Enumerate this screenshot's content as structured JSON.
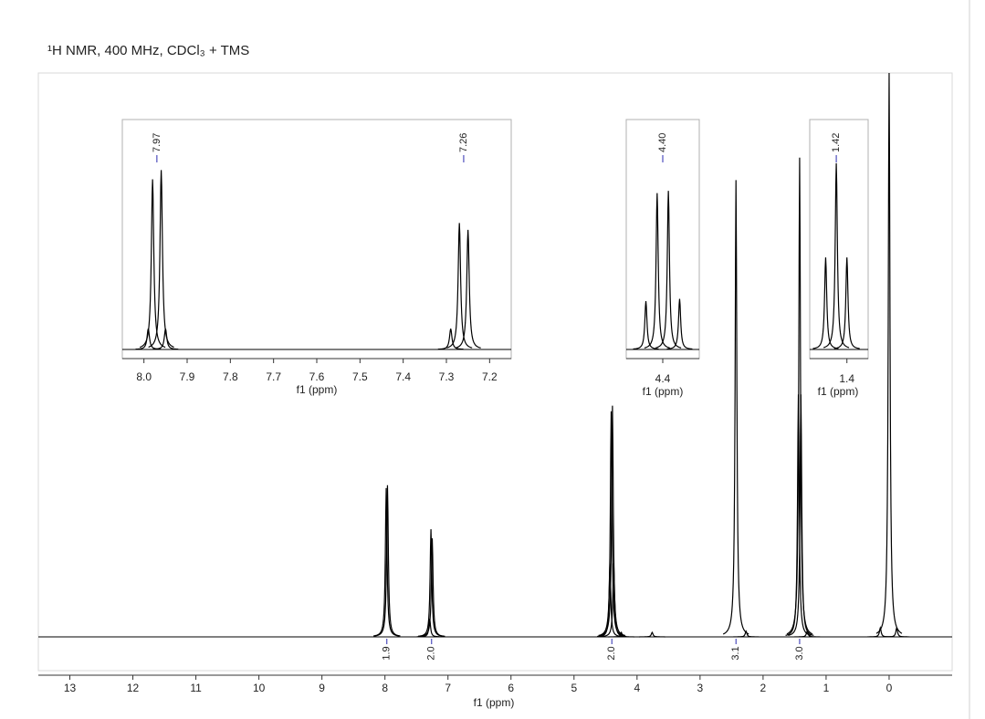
{
  "chart_data": [
    {
      "type": "spectrum",
      "title": "¹H NMR, 400 MHz, CDCl₃ + TMS",
      "xlabel": "f1 (ppm)",
      "xlim": [
        13.5,
        -1.0
      ],
      "xticks": [
        13,
        12,
        11,
        10,
        9,
        8,
        7,
        6,
        5,
        4,
        3,
        2,
        1,
        0
      ],
      "ylim": [
        0,
        100
      ],
      "color": "#000000",
      "x": [
        7.98,
        7.96,
        7.29,
        7.27,
        7.25,
        4.43,
        4.41,
        4.39,
        4.37,
        4.25,
        3.76,
        2.43,
        2.27,
        1.44,
        1.42,
        1.4,
        1.3,
        0.14,
        0,
        -0.12
      ],
      "values": [
        26.4,
        26.9,
        3.2,
        19.1,
        17.5,
        13,
        40,
        41,
        13,
        0.8,
        0.8,
        81,
        1,
        43,
        85,
        43,
        1,
        1.6,
        100,
        1.6
      ],
      "integrals": {
        "x": [
          7.97,
          7.26,
          4.4,
          2.43,
          1.42
        ],
        "values": [
          1.9,
          2.0,
          2.0,
          3.1,
          3.0
        ],
        "value_labels": [
          "1.9",
          "2.0",
          "2.0",
          "3.1",
          "3.0"
        ],
        "color": "#2b2bb0"
      }
    },
    {
      "type": "spectrum",
      "xlabel": "f1 (ppm)",
      "xlim": [
        8.05,
        7.15
      ],
      "xticks": [
        {
          "value": 8.0,
          "label": "8.0"
        },
        7.9,
        7.8,
        7.7,
        7.6,
        7.5,
        7.4,
        7.3,
        {
          "value": 7.2,
          "label": "7.2"
        }
      ],
      "ylim": [
        0,
        100
      ],
      "color": "#000000",
      "x": [
        7.99,
        7.98,
        7.96,
        7.95,
        7.29,
        7.27,
        7.25
      ],
      "values": [
        9,
        74,
        78,
        9,
        9,
        55,
        52
      ],
      "peak_labels": [
        {
          "value": 7.97,
          "label": "7.97"
        },
        {
          "value": 7.26,
          "label": "7.26"
        }
      ],
      "label_color": "#2b2bb0"
    },
    {
      "type": "spectrum",
      "xlabel": "f1 (ppm)",
      "xlim": [
        4.465,
        4.335
      ],
      "xticks": [
        4.4
      ],
      "ylim": [
        0,
        100
      ],
      "color": "#000000",
      "x": [
        4.43,
        4.41,
        4.39,
        4.37
      ],
      "values": [
        21,
        68,
        69,
        22
      ],
      "peak_labels": [
        {
          "value": 4.4,
          "label": "4.40"
        }
      ],
      "label_color": "#2b2bb0"
    },
    {
      "type": "spectrum",
      "xlabel": "f1 (ppm)",
      "xlim": [
        1.47,
        1.36
      ],
      "xticks": [
        1.4
      ],
      "ylim": [
        0,
        100
      ],
      "color": "#000000",
      "x": [
        1.44,
        1.42,
        1.4
      ],
      "values": [
        40,
        81,
        40
      ],
      "peak_labels": [
        {
          "value": 1.42,
          "label": "1.42"
        }
      ],
      "label_color": "#2b2bb0"
    }
  ]
}
